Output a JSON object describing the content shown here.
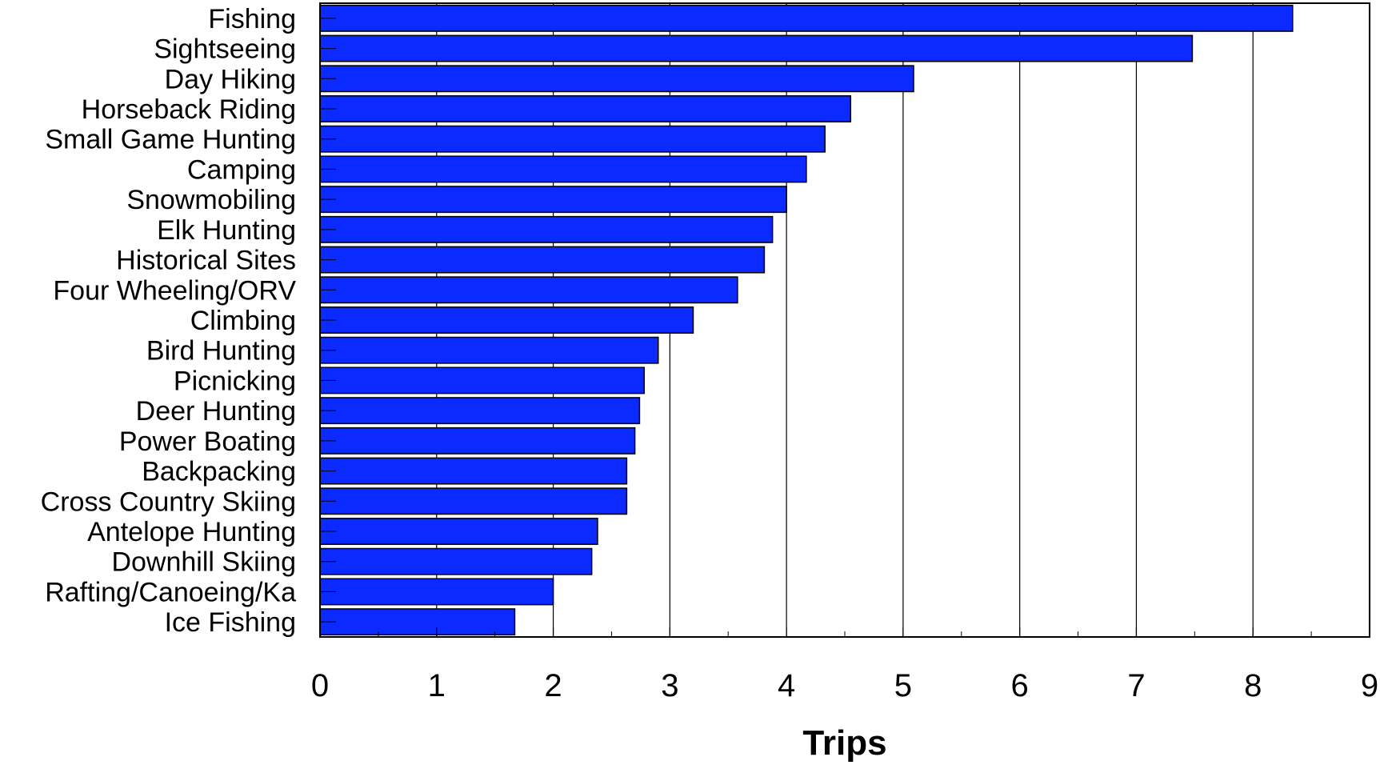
{
  "chart_data": {
    "type": "bar",
    "orientation": "horizontal",
    "title": "",
    "xlabel": "Trips",
    "ylabel": "",
    "xlim": [
      0,
      9
    ],
    "xticks": [
      "0",
      "1",
      "2",
      "3",
      "4",
      "5",
      "6",
      "7",
      "8",
      "9"
    ],
    "grid": "vertical",
    "legend": "none",
    "bar_color": "#0a2aff",
    "categories": [
      "Fishing",
      "Sightseeing",
      "Day Hiking",
      "Horseback Riding",
      "Small Game Hunting",
      "Camping",
      "Snowmobiling",
      "Elk Hunting",
      "Historical Sites",
      "Four Wheeling/ORV",
      "Climbing",
      "Bird Hunting",
      "Picnicking",
      "Deer Hunting",
      "Power Boating",
      "Backpacking",
      "Cross Country Skiing",
      "Antelope Hunting",
      "Downhill Skiing",
      "Rafting/Canoeing/Ka",
      "Ice Fishing"
    ],
    "values": [
      8.34,
      7.48,
      5.09,
      4.55,
      4.33,
      4.17,
      4.0,
      3.88,
      3.81,
      3.58,
      3.2,
      2.9,
      2.78,
      2.74,
      2.7,
      2.63,
      2.63,
      2.38,
      2.33,
      2.0,
      1.67
    ]
  }
}
